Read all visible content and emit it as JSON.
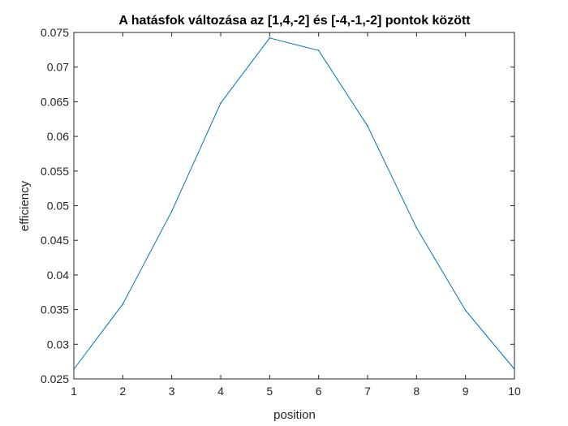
{
  "chart_data": {
    "type": "line",
    "title": "A hatásfok változása az [1,4,-2] és [-4,-1,-2] pontok között",
    "xlabel": "position",
    "ylabel": "efficiency",
    "xlim": [
      1,
      10
    ],
    "ylim": [
      0.025,
      0.075
    ],
    "xticks": [
      1,
      2,
      3,
      4,
      5,
      6,
      7,
      8,
      9,
      10
    ],
    "yticks": [
      0.025,
      0.03,
      0.035,
      0.04,
      0.045,
      0.05,
      0.055,
      0.06,
      0.065,
      0.07,
      0.075
    ],
    "ytick_labels": [
      "0.025",
      "0.03",
      "0.035",
      "0.04",
      "0.045",
      "0.05",
      "0.055",
      "0.06",
      "0.065",
      "0.07",
      "0.075"
    ],
    "grid": false,
    "series": [
      {
        "color": "#0072BD",
        "x": [
          1,
          2,
          3,
          4,
          5,
          6,
          7,
          8,
          9,
          10
        ],
        "y": [
          0.0264,
          0.0358,
          0.0492,
          0.0648,
          0.0742,
          0.0724,
          0.0615,
          0.0468,
          0.0349,
          0.0264
        ]
      }
    ]
  }
}
